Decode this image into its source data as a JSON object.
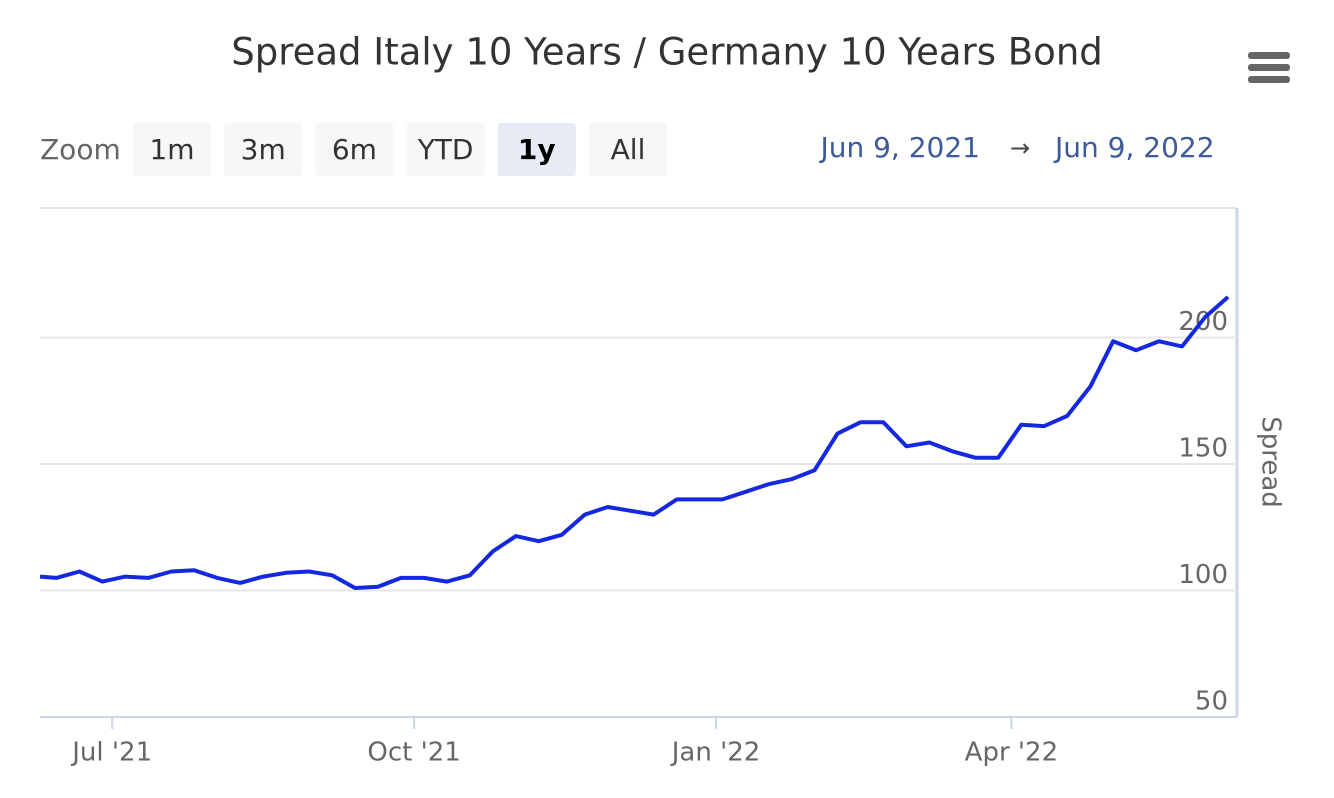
{
  "chart_data": {
    "type": "line",
    "title": "Spread Italy 10 Years / Germany 10 Years Bond",
    "range_selector": {
      "zoom_label": "Zoom",
      "buttons": [
        "1m",
        "3m",
        "6m",
        "YTD",
        "1y",
        "All"
      ],
      "selected": 4,
      "from": "Jun 9, 2021",
      "arrow": "→",
      "to": "Jun 9, 2022"
    },
    "y_axis_label": "Spread",
    "color": "#1428e0",
    "x": [
      "2021-06-09",
      "2021-06-14",
      "2021-06-21",
      "2021-06-28",
      "2021-07-05",
      "2021-07-12",
      "2021-07-19",
      "2021-07-26",
      "2021-08-02",
      "2021-08-09",
      "2021-08-16",
      "2021-08-23",
      "2021-08-30",
      "2021-09-06",
      "2021-09-13",
      "2021-09-20",
      "2021-09-27",
      "2021-10-04",
      "2021-10-11",
      "2021-10-18",
      "2021-10-25",
      "2021-11-01",
      "2021-11-08",
      "2021-11-15",
      "2021-11-22",
      "2021-11-29",
      "2021-12-06",
      "2021-12-13",
      "2021-12-20",
      "2021-12-27",
      "2022-01-03",
      "2022-01-10",
      "2022-01-17",
      "2022-01-24",
      "2022-01-31",
      "2022-02-07",
      "2022-02-14",
      "2022-02-21",
      "2022-02-28",
      "2022-03-07",
      "2022-03-14",
      "2022-03-21",
      "2022-03-28",
      "2022-04-04",
      "2022-04-11",
      "2022-04-18",
      "2022-04-25",
      "2022-05-02",
      "2022-05-09",
      "2022-05-16",
      "2022-05-23",
      "2022-05-30",
      "2022-06-06"
    ],
    "values": [
      105.5,
      105,
      107.5,
      103.5,
      105.5,
      105,
      107.5,
      108,
      105,
      103,
      105.5,
      107,
      107.5,
      106,
      101,
      101.5,
      105,
      105,
      103.5,
      106,
      115.5,
      121.5,
      119.5,
      122,
      130,
      133,
      131.5,
      130,
      136,
      136,
      136,
      139,
      142,
      144,
      147.5,
      162,
      166.5,
      166.5,
      157,
      158.5,
      155,
      152.5,
      152.5,
      165.5,
      165,
      169,
      180.5,
      198.5,
      195,
      198.5,
      196.5,
      208,
      216
    ],
    "xlim": [
      "2021-06-09",
      "2022-06-06"
    ],
    "xticks": [
      {
        "value": "2021-07-01",
        "label": "Jul '21"
      },
      {
        "value": "2021-10-01",
        "label": "Oct '21"
      },
      {
        "value": "2022-01-01",
        "label": "Jan '22"
      },
      {
        "value": "2022-04-01",
        "label": "Apr '22"
      }
    ],
    "ylim": [
      50,
      250
    ],
    "yticks": [
      50,
      100,
      150,
      200
    ],
    "grid": true
  }
}
